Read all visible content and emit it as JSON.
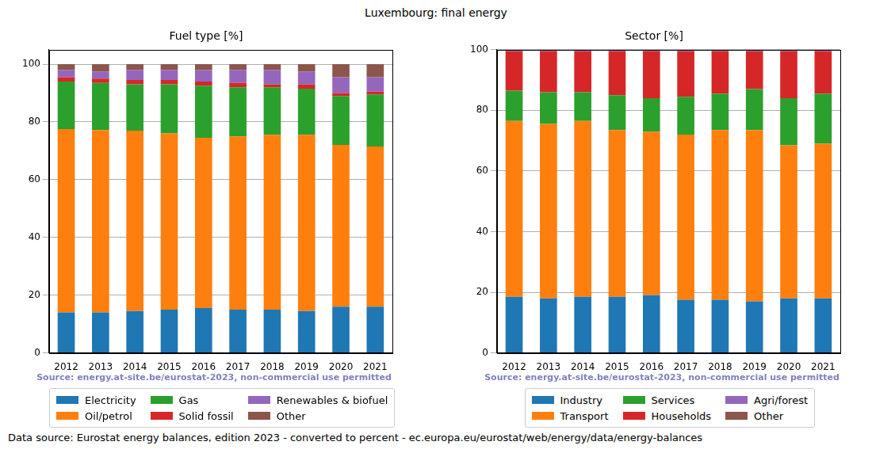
{
  "title": "Luxembourg: final energy",
  "note": "Data source: Eurostat energy balances, edition 2023 - converted to percent - ec.europa.eu/eurostat/web/energy/data/energy-balances",
  "chart_data": [
    {
      "type": "bar",
      "title": "Fuel type [%]",
      "source": "Source: energy.at-site.be/eurostat-2023, non-commercial use permitted",
      "stacked": true,
      "grid": true,
      "legend": "bottom",
      "categories": [
        "2012",
        "2013",
        "2014",
        "2015",
        "2016",
        "2017",
        "2018",
        "2019",
        "2020",
        "2021"
      ],
      "ylim": [
        0,
        105
      ],
      "yticks": [
        0,
        20,
        40,
        60,
        80,
        100
      ],
      "series": [
        {
          "name": "Electricity",
          "color": "#1f77b4",
          "values": [
            14,
            14,
            14.5,
            15,
            15.5,
            15,
            15,
            14.5,
            16,
            16
          ]
        },
        {
          "name": "Oil/petrol",
          "color": "#ff7f0e",
          "values": [
            63.5,
            63.2,
            62.5,
            61,
            59,
            60,
            60.5,
            61,
            56,
            55.5
          ]
        },
        {
          "name": "Gas",
          "color": "#2ca02c",
          "values": [
            16.5,
            16.3,
            16,
            17,
            18,
            17,
            16.5,
            16,
            17,
            18
          ]
        },
        {
          "name": "Solid fossil",
          "color": "#d62728",
          "values": [
            1.5,
            1.5,
            1.5,
            1.5,
            1.5,
            1.5,
            1,
            1.5,
            1,
            1
          ]
        },
        {
          "name": "Renewables & biofuel",
          "color": "#9467bd",
          "values": [
            2.5,
            2.5,
            3.5,
            3.5,
            4,
            4.5,
            5,
            4.5,
            5.5,
            5
          ]
        },
        {
          "name": "Other",
          "color": "#8c564b",
          "values": [
            2,
            2.5,
            2,
            2,
            2,
            2,
            2,
            2.5,
            4.5,
            4.5
          ]
        }
      ]
    },
    {
      "type": "bar",
      "title": "Sector [%]",
      "source": "Source: energy.at-site.be/eurostat-2023, non-commercial use permitted",
      "stacked": true,
      "grid": true,
      "legend": "bottom",
      "categories": [
        "2012",
        "2013",
        "2014",
        "2015",
        "2016",
        "2017",
        "2018",
        "2019",
        "2020",
        "2021"
      ],
      "ylim": [
        0,
        100
      ],
      "yticks": [
        0,
        20,
        40,
        60,
        80,
        100
      ],
      "series": [
        {
          "name": "Industry",
          "color": "#1f77b4",
          "values": [
            18.5,
            18,
            18.5,
            18.5,
            19,
            17.5,
            17.5,
            17,
            18,
            18
          ]
        },
        {
          "name": "Transport",
          "color": "#ff7f0e",
          "values": [
            58,
            57.5,
            58,
            55,
            54,
            54.5,
            56,
            56.5,
            50.5,
            51
          ]
        },
        {
          "name": "Services",
          "color": "#2ca02c",
          "values": [
            10,
            10.5,
            9.5,
            11.5,
            11,
            12.5,
            12,
            13.5,
            15.5,
            16.5
          ]
        },
        {
          "name": "Households",
          "color": "#d62728",
          "values": [
            13,
            13.5,
            13.5,
            14.5,
            15.5,
            15,
            14,
            12.5,
            15.5,
            14
          ]
        },
        {
          "name": "Agri/forest",
          "color": "#9467bd",
          "values": [
            0.5,
            0.5,
            0.5,
            0.5,
            0.5,
            0.5,
            0.5,
            0.5,
            0.5,
            0.5
          ]
        },
        {
          "name": "Other",
          "color": "#8c564b",
          "values": [
            0,
            0,
            0,
            0,
            0,
            0,
            0,
            0,
            0,
            0
          ]
        }
      ]
    }
  ]
}
